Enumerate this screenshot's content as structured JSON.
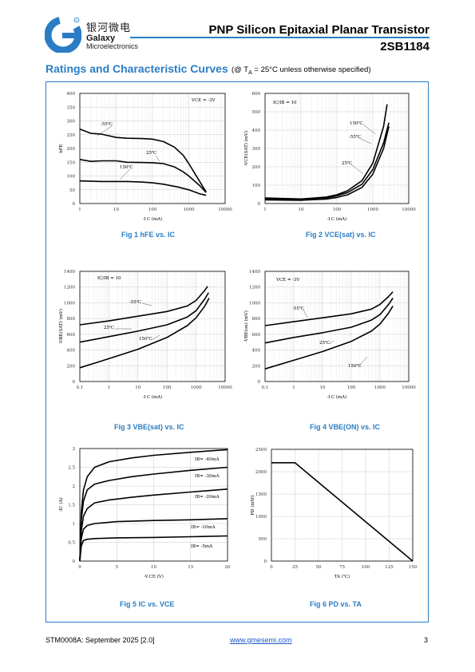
{
  "header": {
    "logo_mark": "G",
    "logo_cn": "银河微电",
    "logo_en1": "Galaxy",
    "logo_en2": "Microelectronics",
    "title": "PNP Silicon Epitaxial Planar Transistor",
    "part": "2SB1184"
  },
  "section": {
    "title": "Ratings and Characteristic Curves",
    "note": "(@ Tₐ = 25°C unless otherwise specified)"
  },
  "footer": {
    "doc": "STM0008A: September 2025 [2.0]",
    "url": "www.gmesemi.com",
    "page": "3"
  },
  "colors": {
    "accent": "#2a7dc4"
  },
  "chart_data": [
    {
      "type": "line",
      "caption": "Fig 1    hFE vs. IC",
      "xlabel": "-I C (mA)",
      "ylabel": "hFE",
      "xscale": "log",
      "xlim": [
        1,
        10000
      ],
      "ylim": [
        0,
        400
      ],
      "xticks": [
        1,
        10,
        100,
        1000,
        10000
      ],
      "yticks": [
        0,
        50,
        100,
        150,
        200,
        250,
        300,
        350,
        400
      ],
      "annotation": "VCE = -3V",
      "series": [
        {
          "name": "-55℃",
          "x": [
            1,
            2,
            4,
            10,
            20,
            50,
            100,
            200,
            400,
            700,
            1000,
            2000,
            3000
          ],
          "y": [
            270,
            255,
            252,
            240,
            237,
            236,
            234,
            225,
            205,
            175,
            145,
            80,
            42
          ]
        },
        {
          "name": "25℃",
          "x": [
            1,
            2,
            4,
            10,
            20,
            50,
            100,
            200,
            400,
            700,
            1000,
            2000,
            3000
          ],
          "y": [
            160,
            153,
            155,
            155,
            150,
            149,
            148,
            145,
            133,
            115,
            100,
            65,
            40
          ]
        },
        {
          "name": "150℃",
          "x": [
            1,
            2,
            4,
            10,
            20,
            50,
            100,
            200,
            500,
            1000,
            2000,
            3000
          ],
          "y": [
            82,
            81,
            80,
            80,
            80,
            78,
            75,
            70,
            60,
            50,
            35,
            30
          ]
        }
      ]
    },
    {
      "type": "line",
      "caption": "Fig 2    VCE(sat) vs. IC",
      "xlabel": "-I C (mA)",
      "ylabel": "-VCE(SAT) (mV)",
      "xscale": "log",
      "xlim": [
        1,
        10000
      ],
      "ylim": [
        0,
        600
      ],
      "xticks": [
        1,
        10,
        100,
        1000,
        10000
      ],
      "yticks": [
        0,
        100,
        200,
        300,
        400,
        500,
        600
      ],
      "annotation": "IC/IB = 10",
      "series": [
        {
          "name": "150℃",
          "x": [
            1,
            10,
            50,
            100,
            200,
            500,
            1000,
            2000,
            2500
          ],
          "y": [
            30,
            25,
            35,
            48,
            70,
            125,
            220,
            420,
            540
          ]
        },
        {
          "name": "-55℃",
          "x": [
            1,
            10,
            50,
            100,
            200,
            500,
            1000,
            2000,
            2800
          ],
          "y": [
            25,
            22,
            30,
            42,
            60,
            105,
            185,
            330,
            440
          ]
        },
        {
          "name": "25℃",
          "x": [
            1,
            10,
            50,
            100,
            200,
            500,
            1000,
            2000,
            2800
          ],
          "y": [
            20,
            18,
            24,
            33,
            48,
            88,
            160,
            300,
            420
          ]
        }
      ]
    },
    {
      "type": "line",
      "caption": "Fig 3    VBE(sat) vs. IC",
      "xlabel": "-I C (mA)",
      "ylabel": "-VBE(SAT) (mV)",
      "xscale": "log",
      "xlim": [
        0.1,
        10000
      ],
      "ylim": [
        0,
        1400
      ],
      "xticks": [
        0.1,
        1,
        10,
        100,
        1000,
        10000
      ],
      "yticks": [
        0,
        200,
        400,
        600,
        800,
        1000,
        1200,
        1400
      ],
      "annotation": "IC/IB = 10",
      "series": [
        {
          "name": "-55℃",
          "x": [
            0.1,
            1,
            10,
            100,
            500,
            1000,
            2000,
            2500
          ],
          "y": [
            720,
            770,
            830,
            890,
            960,
            1030,
            1160,
            1210
          ]
        },
        {
          "name": "25℃",
          "x": [
            0.1,
            1,
            10,
            100,
            500,
            1000,
            2000,
            2700
          ],
          "y": [
            500,
            570,
            640,
            720,
            820,
            900,
            1050,
            1130
          ]
        },
        {
          "name": "150℃",
          "x": [
            0.1,
            1,
            10,
            100,
            500,
            1000,
            2000,
            2800
          ],
          "y": [
            175,
            290,
            410,
            560,
            710,
            810,
            960,
            1060
          ]
        }
      ]
    },
    {
      "type": "line",
      "caption": "Fig 4    VBE(ON) vs. IC",
      "xlabel": "-I C (mA)",
      "ylabel": "-VBE(on) (mV)",
      "xscale": "log",
      "xlim": [
        0.1,
        10000
      ],
      "ylim": [
        0,
        1400
      ],
      "xticks": [
        0.1,
        1,
        10,
        100,
        1000,
        10000
      ],
      "yticks": [
        0,
        200,
        400,
        600,
        800,
        1000,
        1200,
        1400
      ],
      "annotation": "VCE = -3V",
      "series": [
        {
          "name": "-55℃",
          "x": [
            0.1,
            1,
            10,
            100,
            500,
            1000,
            2000,
            2800
          ],
          "y": [
            710,
            760,
            810,
            860,
            920,
            980,
            1080,
            1140
          ]
        },
        {
          "name": "25℃",
          "x": [
            0.1,
            1,
            10,
            100,
            500,
            1000,
            2000,
            2800
          ],
          "y": [
            490,
            560,
            620,
            690,
            780,
            850,
            980,
            1060
          ]
        },
        {
          "name": "150℃",
          "x": [
            0.1,
            1,
            10,
            100,
            500,
            1000,
            2000,
            2800
          ],
          "y": [
            160,
            270,
            380,
            510,
            640,
            730,
            870,
            960
          ]
        }
      ]
    },
    {
      "type": "line",
      "caption": "Fig 5    IC vs. VCE",
      "xlabel": "-V CE (V)",
      "ylabel": "-IC (A)",
      "xscale": "linear",
      "xlim": [
        0,
        20
      ],
      "ylim": [
        0,
        3
      ],
      "xticks": [
        0,
        5,
        10,
        15,
        20
      ],
      "yticks": [
        0,
        0.5,
        1,
        1.5,
        2,
        2.5,
        3
      ],
      "series": [
        {
          "name": "IB= -40mA",
          "x": [
            0,
            0.2,
            0.5,
            1,
            2,
            4,
            7,
            10,
            15,
            20
          ],
          "y": [
            0,
            1.3,
            1.9,
            2.25,
            2.5,
            2.65,
            2.75,
            2.82,
            2.9,
            2.97
          ]
        },
        {
          "name": "IB= -30mA",
          "x": [
            0,
            0.2,
            0.5,
            1,
            2,
            4,
            7,
            10,
            15,
            20
          ],
          "y": [
            0,
            1.1,
            1.6,
            1.9,
            2.05,
            2.15,
            2.25,
            2.32,
            2.42,
            2.5
          ]
        },
        {
          "name": "IB= -20mA",
          "x": [
            0,
            0.2,
            0.5,
            1,
            2,
            4,
            7,
            10,
            15,
            20
          ],
          "y": [
            0,
            0.8,
            1.2,
            1.4,
            1.55,
            1.63,
            1.7,
            1.76,
            1.84,
            1.92
          ]
        },
        {
          "name": "IB= -10mA",
          "x": [
            0,
            0.2,
            0.5,
            1,
            2,
            5,
            10,
            15,
            20
          ],
          "y": [
            0,
            0.6,
            0.85,
            0.95,
            1.0,
            1.05,
            1.08,
            1.1,
            1.13
          ]
        },
        {
          "name": "IB= -5mA",
          "x": [
            0,
            0.2,
            0.5,
            1,
            2,
            5,
            10,
            15,
            20
          ],
          "y": [
            0,
            0.4,
            0.55,
            0.58,
            0.6,
            0.62,
            0.63,
            0.65,
            0.67
          ]
        }
      ]
    },
    {
      "type": "line",
      "caption": "Fig 6    PD vs. TA",
      "xlabel": "TA (℃)",
      "ylabel": "PD (mW)",
      "xscale": "linear",
      "xlim": [
        0,
        150
      ],
      "ylim": [
        0,
        2500
      ],
      "xticks": [
        0,
        25,
        50,
        75,
        100,
        125,
        150
      ],
      "yticks": [
        0,
        500,
        1000,
        1500,
        2000,
        2500
      ],
      "series": [
        {
          "name": "",
          "x": [
            0,
            25,
            150
          ],
          "y": [
            2200,
            2200,
            0
          ]
        }
      ]
    }
  ]
}
